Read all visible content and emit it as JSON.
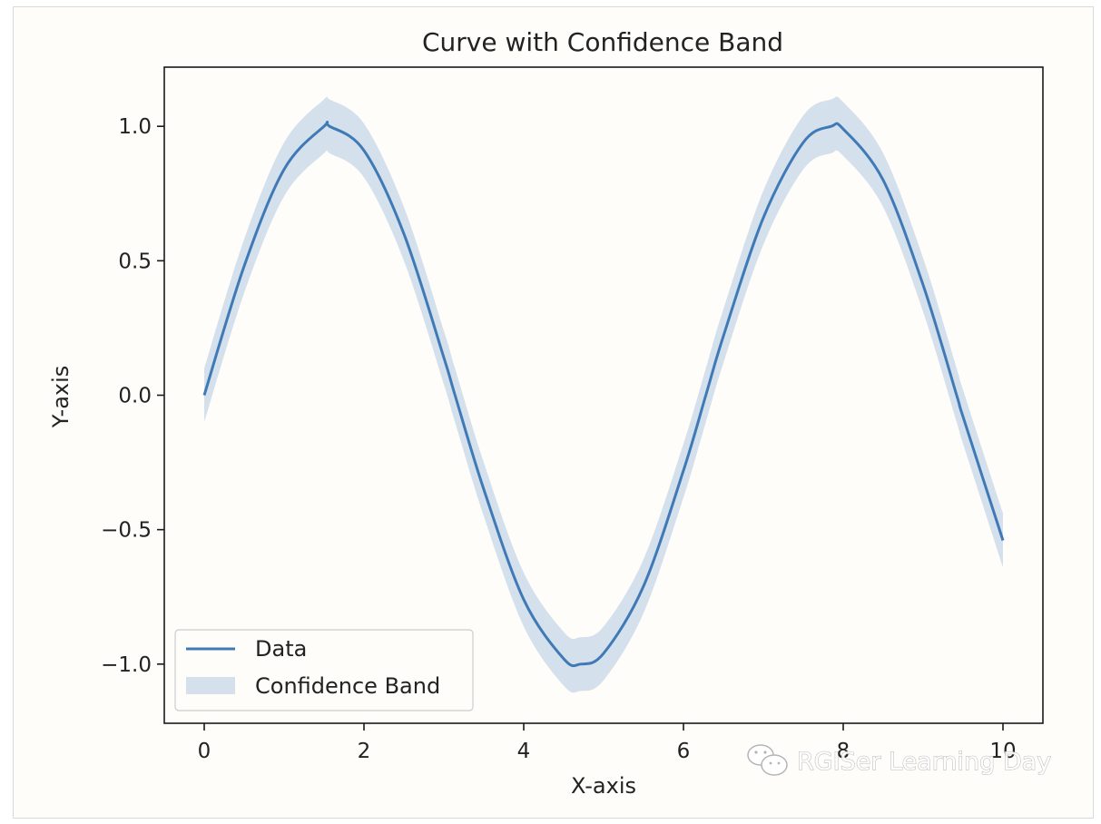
{
  "chart_data": {
    "type": "line",
    "title": "Curve with Confidence Band",
    "xlabel": "X-axis",
    "ylabel": "Y-axis",
    "xlim": [
      -0.5,
      10.5
    ],
    "ylim": [
      -1.22,
      1.22
    ],
    "xticks": [
      0,
      2,
      4,
      6,
      8,
      10
    ],
    "xtick_labels": [
      "0",
      "2",
      "4",
      "6",
      "8",
      "10"
    ],
    "yticks": [
      -1.0,
      -0.5,
      0.0,
      0.5,
      1.0
    ],
    "ytick_labels": [
      "−1.0",
      "−0.5",
      "0.0",
      "0.5",
      "1.0"
    ],
    "grid": false,
    "legend_position": "lower-left",
    "series": [
      {
        "name": "Data",
        "kind": "line",
        "color": "#3f7ab6",
        "x": [
          0,
          0.5,
          1,
          1.5,
          1.57,
          2,
          2.5,
          3,
          3.14,
          3.5,
          4,
          4.5,
          4.71,
          5,
          5.5,
          6,
          6.28,
          6.5,
          7,
          7.5,
          7.85,
          8,
          8.5,
          9,
          9.42,
          9.5,
          10
        ],
        "y": [
          0.0,
          0.48,
          0.84,
          1.0,
          1.0,
          0.91,
          0.6,
          0.14,
          0.0,
          -0.35,
          -0.76,
          -0.98,
          -1.0,
          -0.96,
          -0.71,
          -0.28,
          0.0,
          0.22,
          0.66,
          0.94,
          1.0,
          0.99,
          0.8,
          0.41,
          0.0,
          -0.08,
          -0.54
        ]
      },
      {
        "name": "Confidence Band",
        "kind": "band",
        "color": "#c5d6e6",
        "x": [
          0,
          0.5,
          1,
          1.5,
          1.57,
          2,
          2.5,
          3,
          3.14,
          3.5,
          4,
          4.5,
          4.71,
          5,
          5.5,
          6,
          6.28,
          6.5,
          7,
          7.5,
          7.85,
          8,
          8.5,
          9,
          9.42,
          9.5,
          10
        ],
        "y_lower": [
          -0.1,
          0.38,
          0.74,
          0.9,
          0.9,
          0.81,
          0.5,
          0.04,
          -0.1,
          -0.45,
          -0.86,
          -1.08,
          -1.1,
          -1.06,
          -0.81,
          -0.38,
          -0.1,
          0.12,
          0.56,
          0.84,
          0.9,
          0.89,
          0.7,
          0.31,
          -0.1,
          -0.18,
          -0.64
        ],
        "y_upper": [
          0.1,
          0.58,
          0.94,
          1.1,
          1.1,
          1.01,
          0.7,
          0.24,
          0.1,
          -0.25,
          -0.66,
          -0.88,
          -0.9,
          -0.86,
          -0.61,
          -0.18,
          0.1,
          0.32,
          0.76,
          1.04,
          1.1,
          1.09,
          0.9,
          0.51,
          0.1,
          0.02,
          -0.44
        ]
      }
    ]
  },
  "watermark": {
    "text": "RGISer Learning Day",
    "icon": "wechat-icon"
  }
}
